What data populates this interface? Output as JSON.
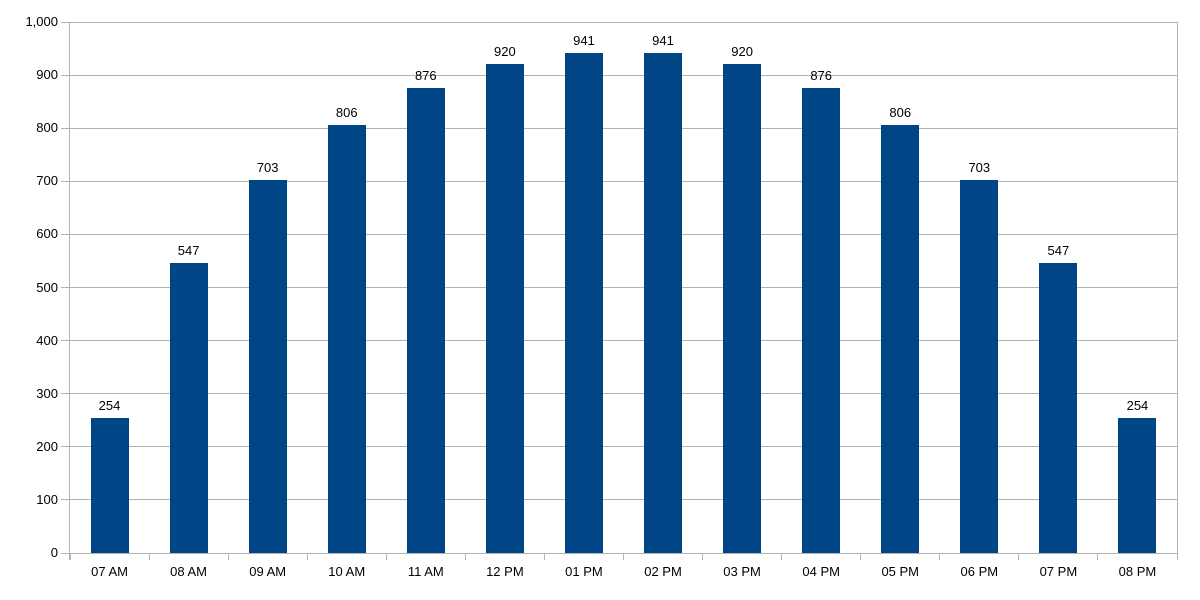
{
  "chart_data": {
    "type": "bar",
    "title": "",
    "xlabel": "",
    "ylabel": "",
    "categories": [
      "07 AM",
      "08 AM",
      "09 AM",
      "10 AM",
      "11 AM",
      "12 PM",
      "01 PM",
      "02 PM",
      "03 PM",
      "04 PM",
      "05 PM",
      "06 PM",
      "07 PM",
      "08 PM"
    ],
    "values": [
      254,
      547,
      703,
      806,
      876,
      920,
      941,
      941,
      920,
      876,
      806,
      703,
      547,
      254
    ],
    "data_labels": [
      "254",
      "547",
      "703",
      "806",
      "876",
      "920",
      "941",
      "941",
      "920",
      "876",
      "806",
      "703",
      "547",
      "254"
    ],
    "ylim": [
      0,
      1000
    ],
    "y_tick_step": 100,
    "y_tick_labels": [
      "0",
      "100",
      "200",
      "300",
      "400",
      "500",
      "600",
      "700",
      "800",
      "900",
      "1,000"
    ],
    "grid": true,
    "legend": "none",
    "colors": {
      "bar_fill": "#004586",
      "gridline": "#b3b3b3",
      "axis_line": "#b3b3b3",
      "text": "#000000",
      "background": "#ffffff"
    }
  }
}
